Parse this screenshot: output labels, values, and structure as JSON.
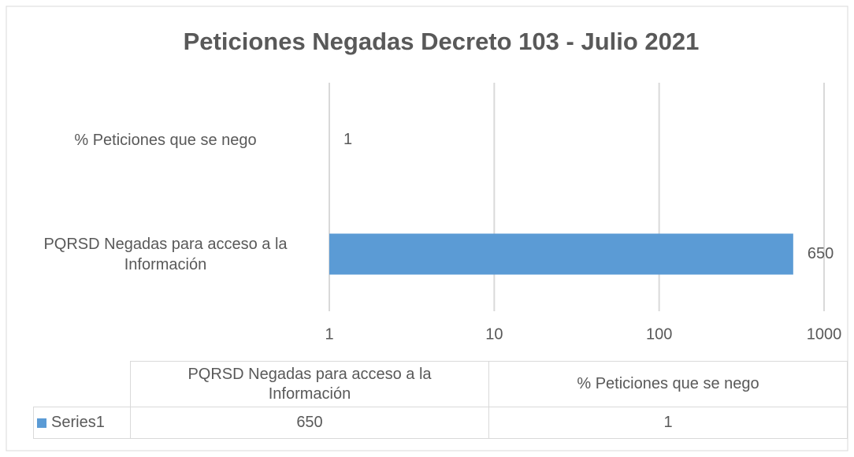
{
  "chart_data": {
    "type": "bar",
    "orientation": "horizontal",
    "title": "Peticiones Negadas Decreto 103 - Julio 2021",
    "categories": [
      "PQRSD Negadas para acceso a la Información",
      "% Peticiones que se nego"
    ],
    "series": [
      {
        "name": "Series1",
        "color": "#5b9bd5",
        "values": [
          650,
          1
        ]
      }
    ],
    "xlim": [
      1,
      1000
    ],
    "xticks": [
      1,
      10,
      100,
      1000
    ],
    "log_scale": true,
    "grid": true,
    "data_table": true
  }
}
